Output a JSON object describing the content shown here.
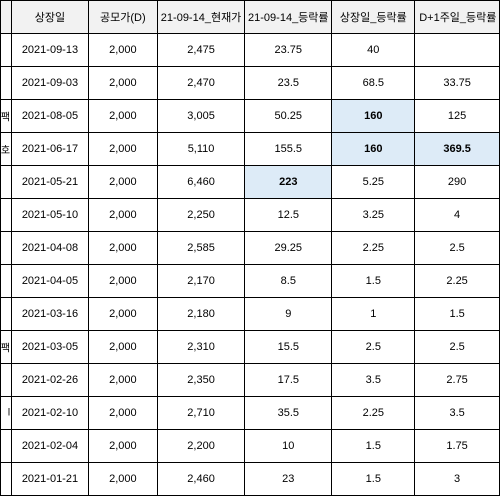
{
  "headers": [
    "상장일",
    "공모가(D)",
    "21-09-14_현재가",
    "21-09-14_등락률",
    "상장일_등락률",
    "D+1주일_등락률"
  ],
  "rows": [
    {
      "frag": "",
      "date": "2021-09-13",
      "offer": "2,000",
      "price": "2,475",
      "rate": "23.75",
      "listing": "40",
      "week": ""
    },
    {
      "frag": "",
      "date": "2021-09-03",
      "offer": "2,000",
      "price": "2,470",
      "rate": "23.5",
      "listing": "68.5",
      "week": "33.75"
    },
    {
      "frag": "팩",
      "date": "2021-08-05",
      "offer": "2,000",
      "price": "3,005",
      "rate": "50.25",
      "listing": "160",
      "week": "125"
    },
    {
      "frag": "호",
      "date": "2021-06-17",
      "offer": "2,000",
      "price": "5,110",
      "rate": "155.5",
      "listing": "160",
      "week": "369.5"
    },
    {
      "frag": "",
      "date": "2021-05-21",
      "offer": "2,000",
      "price": "6,460",
      "rate": "223",
      "listing": "5.25",
      "week": "290"
    },
    {
      "frag": "",
      "date": "2021-05-10",
      "offer": "2,000",
      "price": "2,250",
      "rate": "12.5",
      "listing": "3.25",
      "week": "4"
    },
    {
      "frag": "",
      "date": "2021-04-08",
      "offer": "2,000",
      "price": "2,585",
      "rate": "29.25",
      "listing": "2.25",
      "week": "2.5"
    },
    {
      "frag": "",
      "date": "2021-04-05",
      "offer": "2,000",
      "price": "2,170",
      "rate": "8.5",
      "listing": "1.5",
      "week": "2.25"
    },
    {
      "frag": "",
      "date": "2021-03-16",
      "offer": "2,000",
      "price": "2,180",
      "rate": "9",
      "listing": "1",
      "week": "1.5"
    },
    {
      "frag": "팩",
      "date": "2021-03-05",
      "offer": "2,000",
      "price": "2,310",
      "rate": "15.5",
      "listing": "2.5",
      "week": "2.5"
    },
    {
      "frag": "",
      "date": "2021-02-26",
      "offer": "2,000",
      "price": "2,350",
      "rate": "17.5",
      "listing": "3.5",
      "week": "2.75"
    },
    {
      "frag": "l",
      "date": "2021-02-10",
      "offer": "2,000",
      "price": "2,710",
      "rate": "35.5",
      "listing": "2.25",
      "week": "3.5"
    },
    {
      "frag": "",
      "date": "2021-02-04",
      "offer": "2,000",
      "price": "2,200",
      "rate": "10",
      "listing": "1.5",
      "week": "1.75"
    },
    {
      "frag": "",
      "date": "2021-01-21",
      "offer": "2,000",
      "price": "2,460",
      "rate": "23",
      "listing": "1.5",
      "week": "3"
    }
  ],
  "highlight_color": "#ddebf7"
}
